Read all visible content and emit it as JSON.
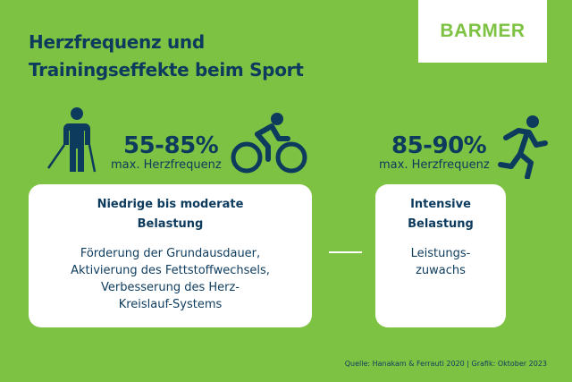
{
  "title": {
    "line1": "Herzfrequenz und",
    "line2": "Trainingseffekte beim Sport"
  },
  "logo": {
    "text": "BARMER"
  },
  "left": {
    "percent": "55-85%",
    "subtitle": "max. Herzfrequenz",
    "icons": [
      "walking-with-poles-icon",
      "cycling-icon"
    ],
    "card": {
      "heading_line1": "Niedrige bis moderate",
      "heading_line2": "Belastung",
      "body_lines": [
        "Förderung der Grundausdauer,",
        "Aktivierung des Fettstoffwechsels,",
        "Verbesserung des Herz-",
        "Kreislauf-Systems"
      ]
    }
  },
  "right": {
    "percent": "85-90%",
    "subtitle": "max. Herzfrequenz",
    "icons": [
      "running-icon"
    ],
    "card": {
      "heading_line1": "Intensive",
      "heading_line2": "Belastung",
      "body_lines": [
        "Leistungs-",
        "zuwachs"
      ]
    }
  },
  "source": "Quelle: Hanakam & Ferrauti 2020 | Grafik: Oktober 2023",
  "colors": {
    "background": "#7dc242",
    "text": "#0d3b5e",
    "card": "#ffffff"
  }
}
